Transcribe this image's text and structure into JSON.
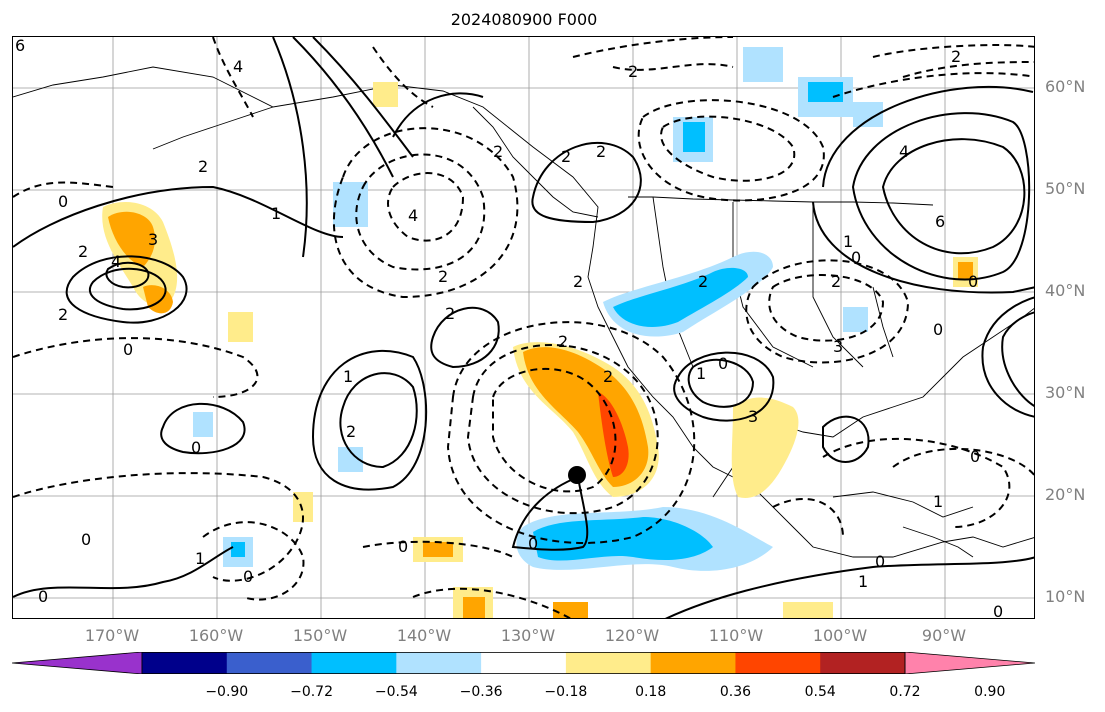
{
  "title": "2024080900 F000",
  "lat_labels": [
    "60°N",
    "50°N",
    "40°N",
    "30°N",
    "20°N",
    "10°N"
  ],
  "lon_labels": [
    "170°W",
    "160°W",
    "150°W",
    "140°W",
    "130°W",
    "120°W",
    "110°W",
    "100°W",
    "90°W"
  ],
  "colorbar": {
    "colors": [
      "#9932cc",
      "#00008b",
      "#3a5fcd",
      "#00bfff",
      "#b0e2ff",
      "#ffffff",
      "#ffec8b",
      "#ffa500",
      "#ff4500",
      "#b22222",
      "#ff82ab"
    ],
    "ticks": [
      "−0.90",
      "−0.72",
      "−0.54",
      "−0.36",
      "−0.18",
      "0.18",
      "0.36",
      "0.54",
      "0.72",
      "0.90"
    ]
  },
  "contour_labels": [
    "6",
    "4",
    "3",
    "2",
    "2",
    "0",
    "2",
    "4",
    "2",
    "0",
    "0",
    "4",
    "2",
    "0",
    "2",
    "2",
    "1",
    "2",
    "2",
    "0",
    "1",
    "2",
    "2",
    "1",
    "2",
    "2",
    "2",
    "3",
    "4",
    "6",
    "2",
    "0",
    "1",
    "0",
    "0",
    "0",
    "0",
    "0",
    "0",
    "1",
    "3",
    "0",
    "1",
    "0",
    "1",
    "2",
    "0"
  ],
  "storm_marker": "tropical-cyclone-center"
}
